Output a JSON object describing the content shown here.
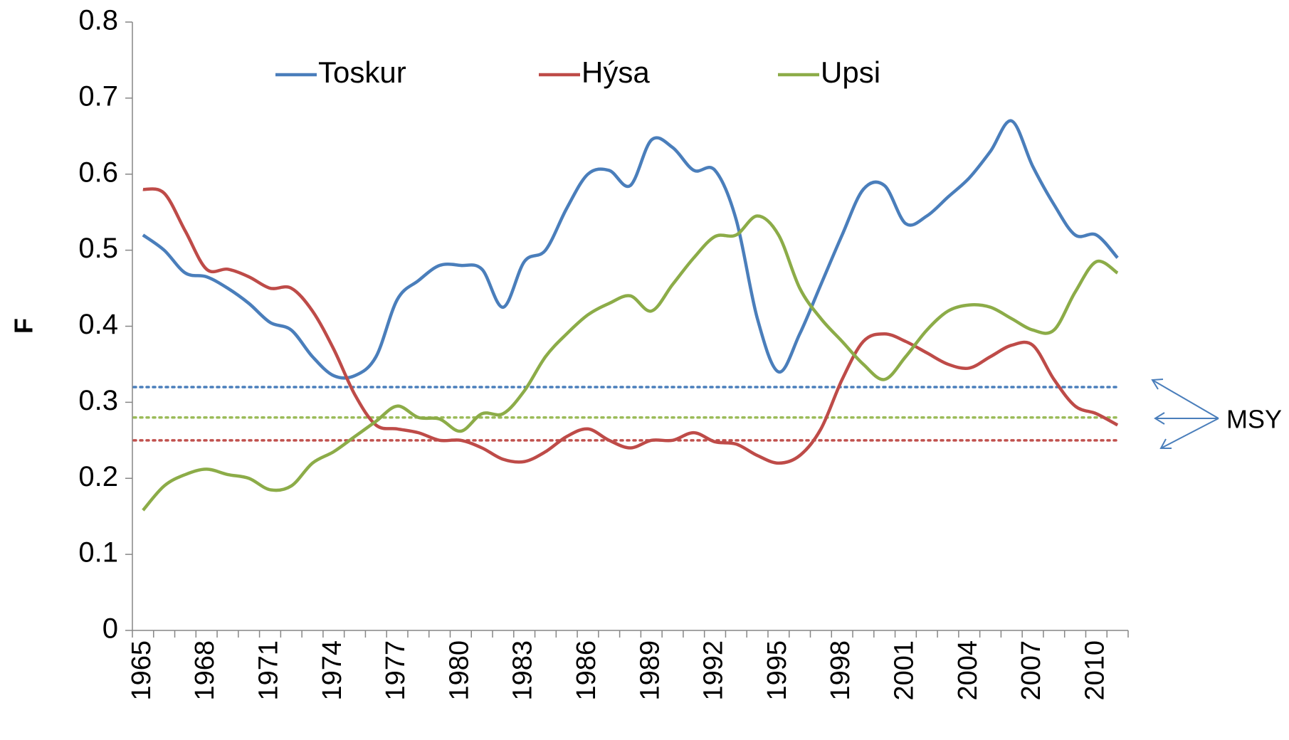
{
  "chart_data": {
    "type": "line",
    "y_label": "F",
    "categories": [
      "1965",
      null,
      null,
      "1968",
      null,
      null,
      "1971",
      null,
      null,
      "1974",
      null,
      null,
      "1977",
      null,
      null,
      "1980",
      null,
      null,
      "1983",
      null,
      null,
      "1986",
      null,
      null,
      "1989",
      null,
      null,
      "1992",
      null,
      null,
      "1995",
      null,
      null,
      "1998",
      null,
      null,
      "2001",
      null,
      null,
      "2004",
      null,
      null,
      "2007",
      null,
      null,
      "2010",
      null
    ],
    "series": [
      {
        "name": "Toskur",
        "color": "#4a7ebb",
        "values": [
          0.52,
          0.5,
          0.47,
          0.465,
          0.45,
          0.43,
          0.405,
          0.395,
          0.36,
          0.335,
          0.335,
          0.36,
          0.435,
          0.46,
          0.48,
          0.48,
          0.475,
          0.425,
          0.485,
          0.5,
          0.555,
          0.6,
          0.605,
          0.585,
          0.645,
          0.635,
          0.605,
          0.605,
          0.54,
          0.41,
          0.34,
          0.39,
          0.455,
          0.52,
          0.58,
          0.585,
          0.535,
          0.545,
          0.57,
          0.595,
          0.63,
          0.67,
          0.61,
          0.56,
          0.52,
          0.52,
          0.49
        ]
      },
      {
        "name": "Hýsa",
        "color": "#be4b48",
        "values": [
          0.58,
          0.575,
          0.525,
          0.475,
          0.475,
          0.465,
          0.45,
          0.45,
          0.42,
          0.37,
          0.31,
          0.27,
          0.265,
          0.26,
          0.25,
          0.25,
          0.24,
          0.225,
          0.222,
          0.235,
          0.255,
          0.265,
          0.25,
          0.24,
          0.25,
          0.25,
          0.26,
          0.248,
          0.245,
          0.23,
          0.22,
          0.23,
          0.265,
          0.33,
          0.38,
          0.39,
          0.38,
          0.365,
          0.35,
          0.345,
          0.36,
          0.375,
          0.375,
          0.33,
          0.295,
          0.285,
          0.27
        ]
      },
      {
        "name": "Upsi",
        "color": "#8cac48",
        "values": [
          0.158,
          0.19,
          0.205,
          0.212,
          0.205,
          0.2,
          0.185,
          0.19,
          0.22,
          0.235,
          0.255,
          0.275,
          0.295,
          0.28,
          0.278,
          0.262,
          0.285,
          0.285,
          0.315,
          0.36,
          0.39,
          0.415,
          0.43,
          0.44,
          0.42,
          0.455,
          0.49,
          0.518,
          0.52,
          0.545,
          0.52,
          0.45,
          0.41,
          0.38,
          0.35,
          0.33,
          0.36,
          0.395,
          0.42,
          0.428,
          0.425,
          0.41,
          0.395,
          0.395,
          0.445,
          0.485,
          0.47
        ]
      }
    ],
    "reference_lines": [
      {
        "value": 0.32,
        "color": "#4a7ebb"
      },
      {
        "value": 0.28,
        "color": "#9bbb59"
      },
      {
        "value": 0.25,
        "color": "#c0504d"
      }
    ],
    "annotation": "MSY",
    "ylim": [
      0,
      0.8
    ],
    "yticks": [
      0,
      0.1,
      0.2,
      0.3,
      0.4,
      0.5,
      0.6,
      0.7,
      0.8
    ],
    "legend": "top"
  }
}
